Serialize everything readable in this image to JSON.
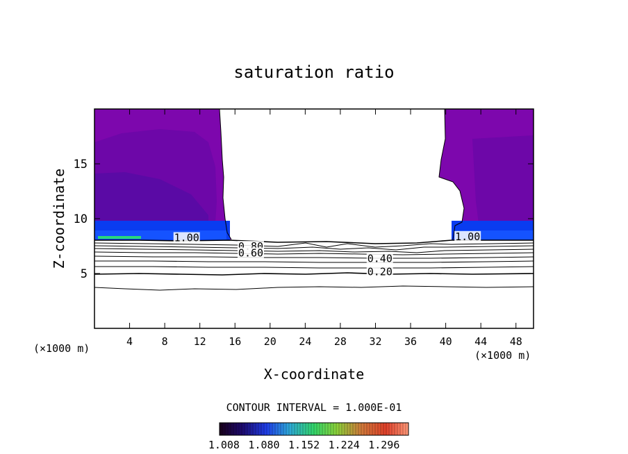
{
  "chart_data": {
    "type": "heatmap",
    "title": "saturation ratio",
    "xlabel": "X-coordinate",
    "ylabel": "Z-coordinate",
    "x_unit_left": "(×1000 m)",
    "x_unit_right": "(×1000 m)",
    "xlim": [
      0,
      50
    ],
    "ylim": [
      0,
      20
    ],
    "x_ticks": [
      4,
      8,
      12,
      16,
      20,
      24,
      28,
      32,
      36,
      40,
      44,
      48
    ],
    "x_tick_labels": [
      "4",
      "8",
      "12",
      "16",
      "20",
      "24",
      "28",
      "32",
      "36",
      "40",
      "44",
      "48"
    ],
    "y_ticks": [
      5,
      10,
      15
    ],
    "y_tick_labels": [
      "5",
      "10",
      "15"
    ],
    "contour_interval_text": "CONTOUR INTERVAL = 1.000E-01",
    "contour_levels": [
      0.1,
      0.2,
      0.3,
      0.4,
      0.5,
      0.6,
      0.7,
      0.8,
      0.9,
      1.0
    ],
    "contour_labels": [
      {
        "text": "1.00",
        "x": 10.5,
        "z": 8.2
      },
      {
        "text": "0.80",
        "x": 17.8,
        "z": 7.4
      },
      {
        "text": "0.60",
        "x": 17.8,
        "z": 6.8
      },
      {
        "text": "0.40",
        "x": 32.5,
        "z": 6.3
      },
      {
        "text": "0.20",
        "x": 32.5,
        "z": 5.1
      },
      {
        "text": "1.00",
        "x": 42.5,
        "z": 8.3
      }
    ],
    "colorbar": {
      "ticks": [
        1.008,
        1.08,
        1.152,
        1.224,
        1.296
      ],
      "tick_labels": [
        "1.008",
        "1.080",
        "1.152",
        "1.224",
        "1.296"
      ],
      "range": [
        1.0,
        1.34
      ]
    },
    "supersaturated_regions": [
      {
        "x_from": 0,
        "x_to": 15.5,
        "z_from": 8.2,
        "z_to": 20
      },
      {
        "x_from": 40.3,
        "x_to": 50,
        "z_from": 8.2,
        "z_to": 20
      }
    ],
    "colors": {
      "background_purple": "#7d07ad",
      "deep_purple": "#6a08a6",
      "blue_band": "#0a3cf0",
      "bright_blue": "#1553ff",
      "line": "#000000"
    }
  }
}
